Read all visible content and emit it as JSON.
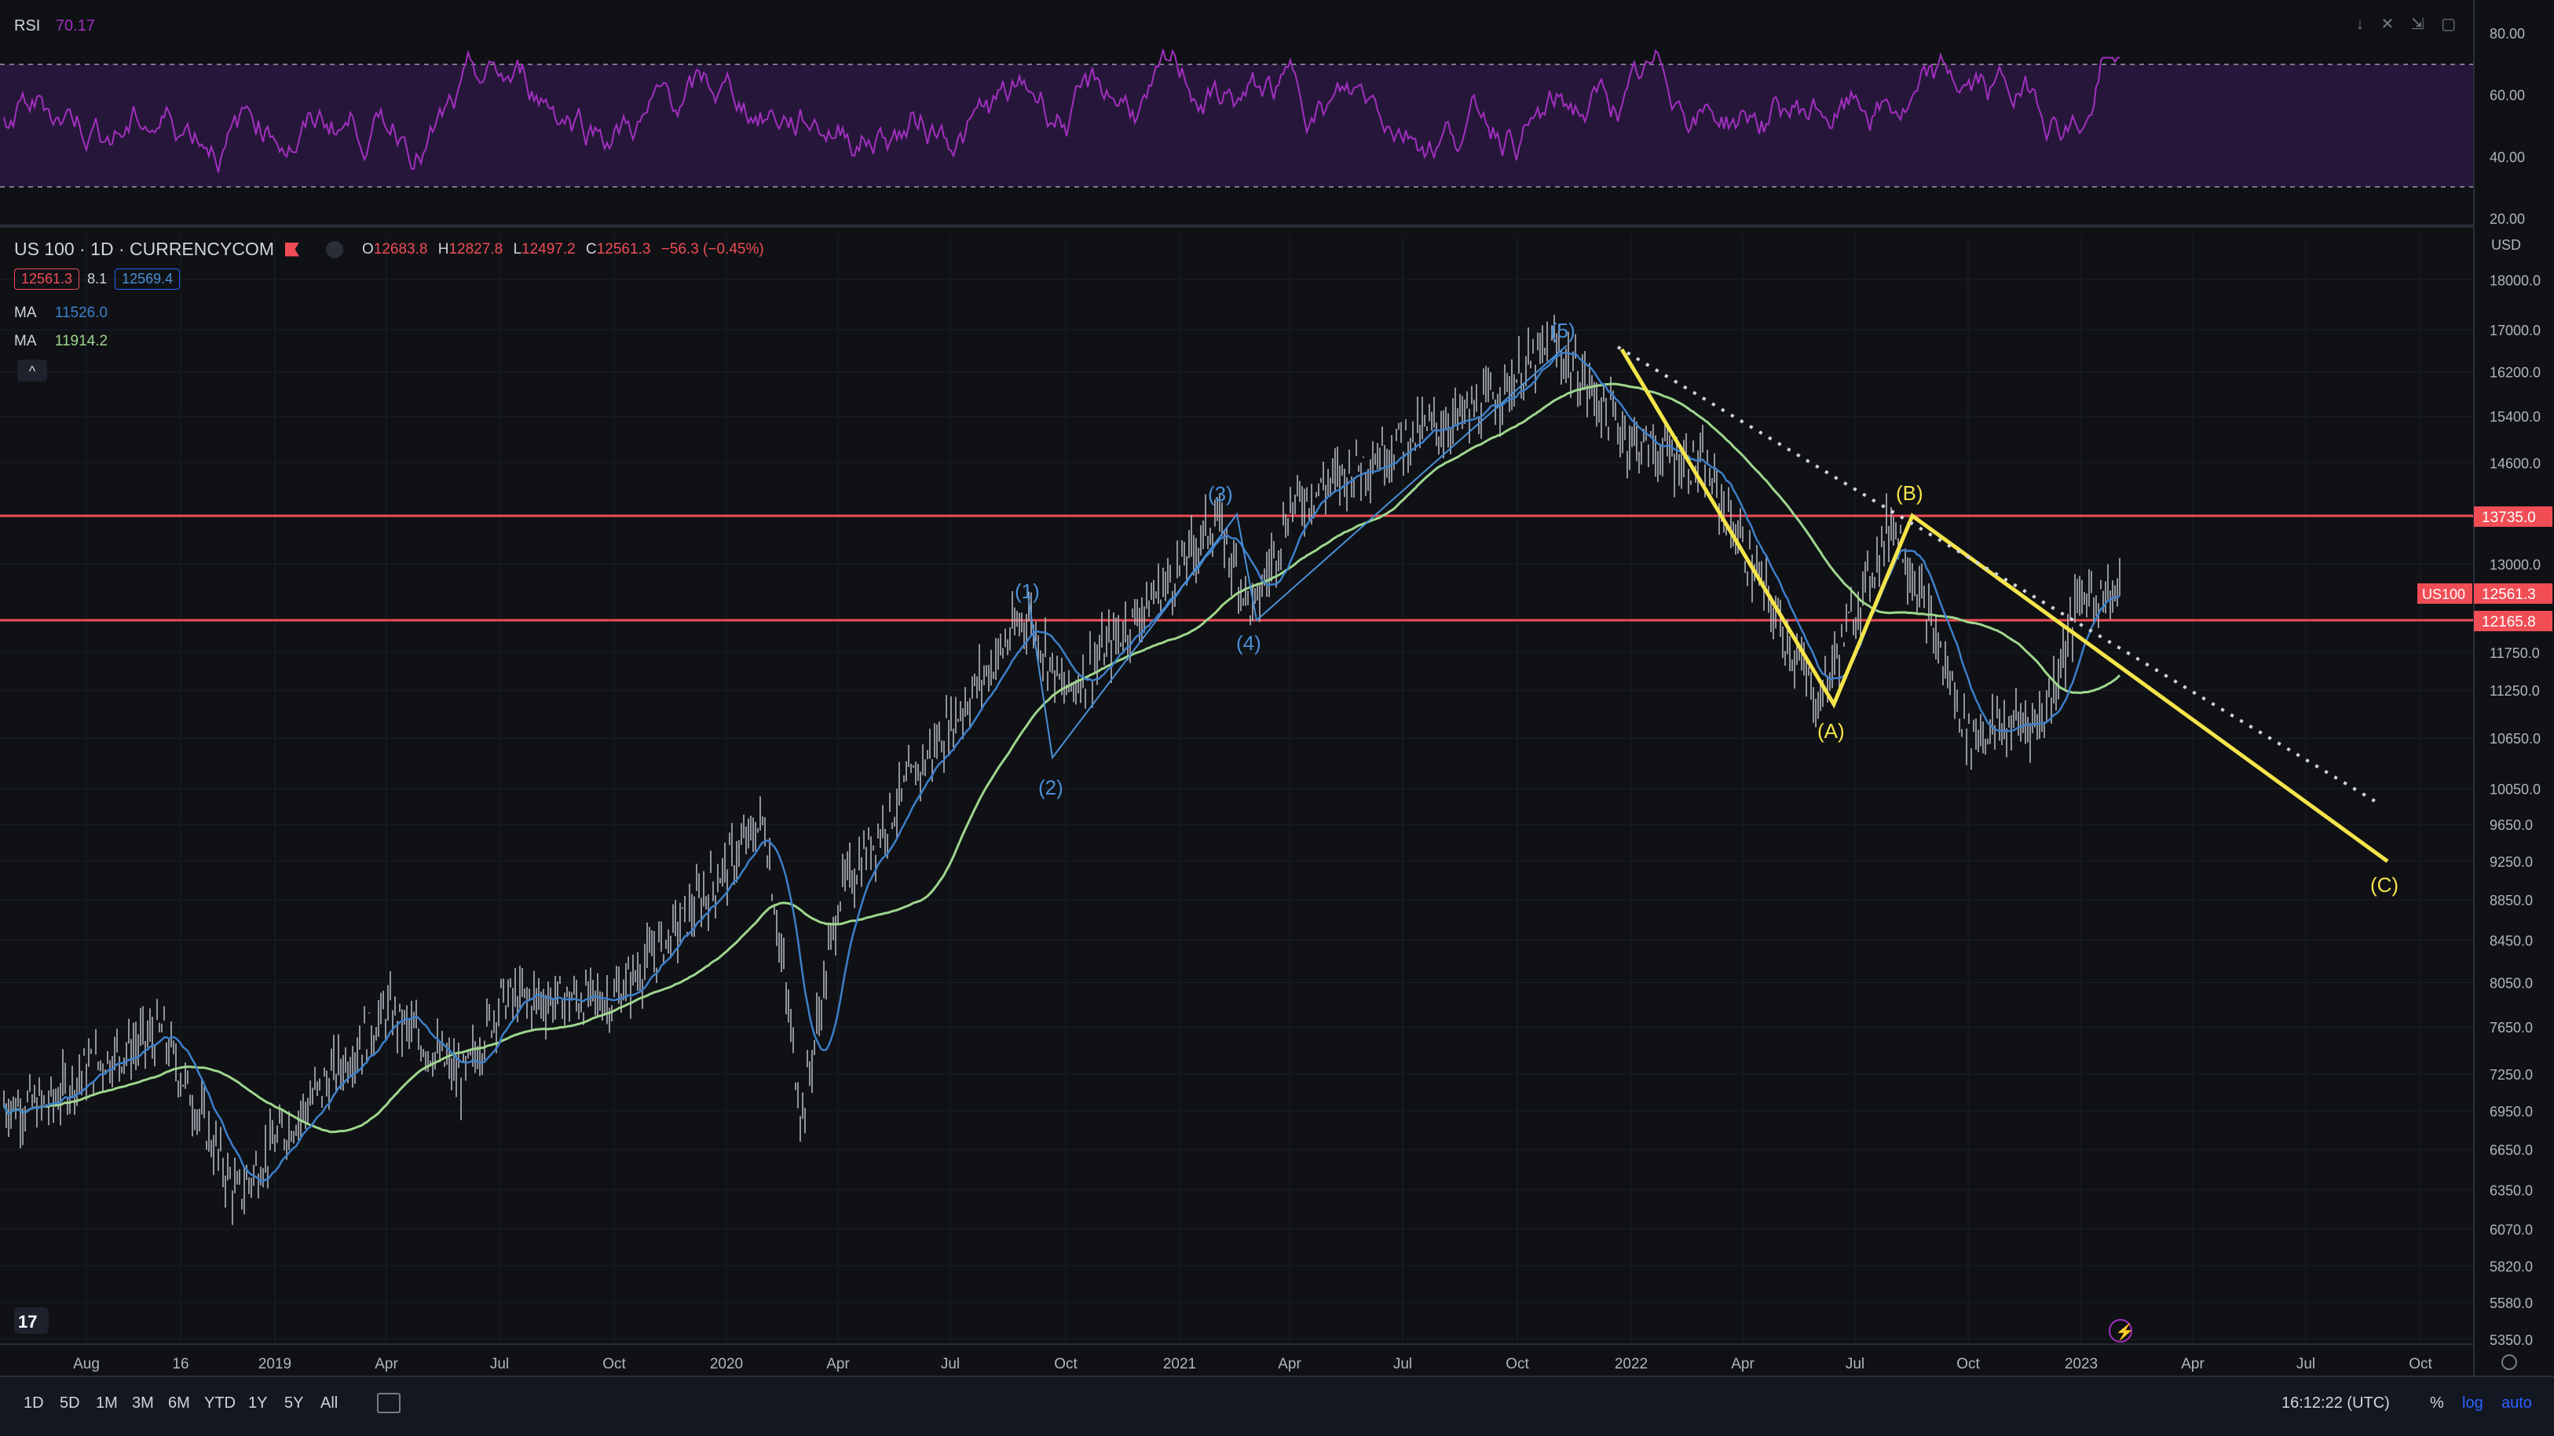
{
  "colors": {
    "background": "#0f1115",
    "grid": "#1b1f29",
    "candle": "#b2b5be",
    "ma_fast": "#3d7fc9",
    "ma_slow": "#9ed68d",
    "wave_blue": "#4a8fd6",
    "wave_yellow": "#f5e44a",
    "level_red": "#f04d55",
    "rsi_line": "#a22fbf",
    "rsi_band": "#26173a"
  },
  "rsi": {
    "title": "RSI",
    "value": "70.17",
    "ticks": [
      "80.00",
      "60.00",
      "40.00",
      "20.00"
    ],
    "icons": [
      "arrow-down-icon",
      "close-icon",
      "collapse-icon",
      "maximize-icon"
    ]
  },
  "legend": {
    "symbol": "US 100 · 1D · CURRENCYCOM",
    "ohlc": {
      "o_label": "O",
      "o": "12683.8",
      "h_label": "H",
      "h": "12827.8",
      "l_label": "L",
      "l": "12497.2",
      "c_label": "C",
      "c": "12561.3",
      "change": "−56.3 (−0.45%)"
    },
    "bid": "12561.3",
    "spread": "8.1",
    "ask": "12569.4",
    "ma1_label": "MA",
    "ma1_value": "11526.0",
    "ma2_label": "MA",
    "ma2_value": "11914.2",
    "collapse_icon": "^"
  },
  "price_axis": {
    "currency": "USD",
    "ticks": [
      "18000.0",
      "17000.0",
      "16200.0",
      "15400.0",
      "14600.0",
      "13735.0",
      "13000.0",
      "12561.3",
      "12165.8",
      "11750.0",
      "11250.0",
      "10650.0",
      "10050.0",
      "9650.0",
      "9250.0",
      "8850.0",
      "8450.0",
      "8050.0",
      "7650.0",
      "7250.0",
      "6950.0",
      "6650.0",
      "6350.0",
      "6070.0",
      "5820.0",
      "5580.0",
      "5350.0"
    ],
    "symbol_tag": "US100",
    "last_price": "12561.3",
    "level_high": "13735.0",
    "level_low": "12165.8"
  },
  "time_axis": {
    "labels": [
      "Aug",
      "16",
      "2019",
      "Apr",
      "Jul",
      "Oct",
      "2020",
      "Apr",
      "Jul",
      "Oct",
      "2021",
      "Apr",
      "Jul",
      "Oct",
      "2022",
      "Apr",
      "Jul",
      "Oct",
      "2023",
      "Apr",
      "Jul",
      "Oct"
    ]
  },
  "waves": {
    "impulse": [
      "(1)",
      "(2)",
      "(3)",
      "(4)",
      "(5)"
    ],
    "correction": [
      "(A)",
      "(B)",
      "(C)"
    ]
  },
  "bottom_bar": {
    "ranges": [
      "1D",
      "5D",
      "1M",
      "3M",
      "6M",
      "YTD",
      "1Y",
      "5Y",
      "All"
    ],
    "clock": "16:12:22 (UTC)",
    "percent": "%",
    "log": "log",
    "auto": "auto"
  },
  "chart_data": {
    "type": "candlestick",
    "symbol": "US 100",
    "timeframe": "1D",
    "ohlc_last": {
      "open": 12683.8,
      "high": 12827.8,
      "low": 12497.2,
      "close": 12561.3
    },
    "moving_averages": [
      {
        "label": "MA",
        "value": 11526.0
      },
      {
        "label": "MA",
        "value": 11914.2
      }
    ],
    "horizontal_levels": [
      13735.0,
      12165.8
    ],
    "price_close_series": {
      "x": [
        "2018-07",
        "2018-08",
        "2018-10",
        "2018-12",
        "2019-01",
        "2019-04",
        "2019-06",
        "2019-07",
        "2019-10",
        "2019-12",
        "2020-02",
        "2020-03",
        "2020-04",
        "2020-06",
        "2020-09",
        "2020-10",
        "2021-01",
        "2021-02",
        "2021-03",
        "2021-04",
        "2021-07",
        "2021-09",
        "2021-11",
        "2022-01",
        "2022-03",
        "2022-06",
        "2022-08",
        "2022-10",
        "2022-12",
        "2023-01"
      ],
      "y": [
        7000,
        7300,
        7600,
        6300,
        6700,
        7800,
        7200,
        7900,
        7900,
        8700,
        9700,
        6900,
        8900,
        10200,
        12300,
        11200,
        12900,
        13700,
        12300,
        13900,
        15000,
        15500,
        16700,
        15000,
        14500,
        11100,
        13700,
        10700,
        10900,
        12561
      ]
    },
    "rsi": {
      "latest": 70.17,
      "overbought": 70,
      "oversold": 30
    },
    "elliott_wave_labels": {
      "impulse": {
        "(1)": 12500,
        "(2)": 10700,
        "(3)": 13900,
        "(4)": 12300,
        "(5)": 16700
      },
      "correction": {
        "(A)": 11100,
        "(B)": 13700,
        "(C)": 9250
      }
    },
    "ylim": [
      5350,
      18000
    ],
    "log_scale": true
  }
}
